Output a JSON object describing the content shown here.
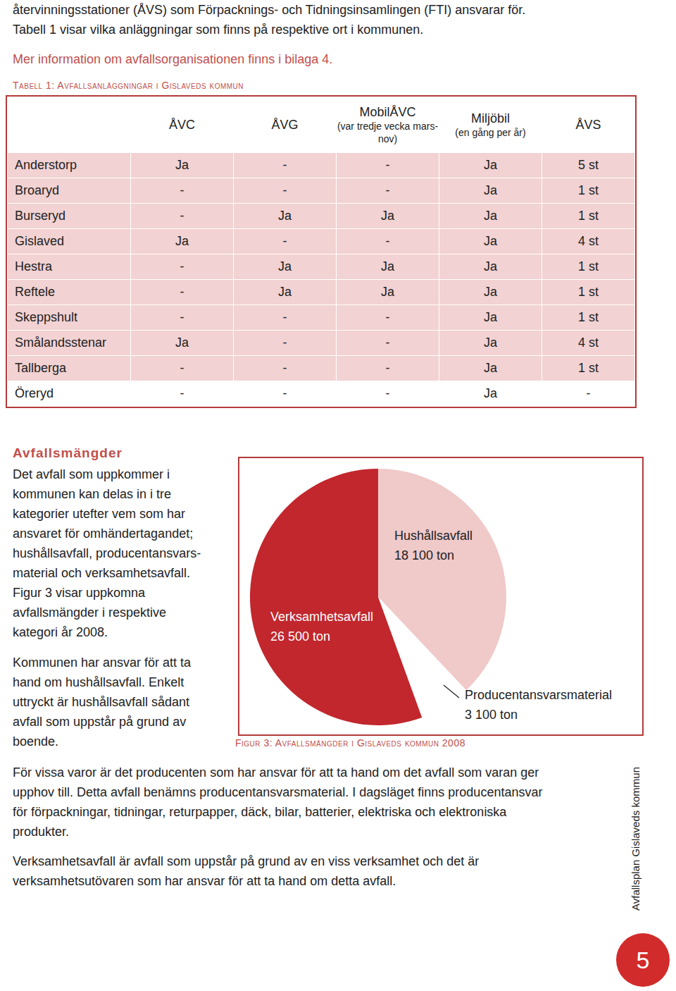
{
  "intro": {
    "lines": [
      "återvinningsstationer (ÅVS) som Förpacknings- och Tidningsinsamlingen (FTI) ansvarar för.",
      "Tabell 1 visar vilka anläggningar som finns på respektive ort i kommunen."
    ],
    "link": "Mer information om avfallsorganisationen finns i bilaga 4."
  },
  "table": {
    "title": "Tabell 1: Avfallsanläggningar i Gislaveds kommun",
    "header": [
      {
        "title": "ÅVC"
      },
      {
        "title": "ÅVG"
      },
      {
        "title": "MobilÅVC",
        "note": "(var tredje vecka mars-nov)"
      },
      {
        "title": "Miljöbil",
        "note": "(en gång per år)"
      },
      {
        "title": "ÅVS"
      }
    ],
    "rows": [
      [
        "Anderstorp",
        "Ja",
        "-",
        "-",
        "Ja",
        "5 st"
      ],
      [
        "Broaryd",
        "-",
        "-",
        "-",
        "Ja",
        "1 st"
      ],
      [
        "Burseryd",
        "-",
        "Ja",
        "Ja",
        "Ja",
        "1 st"
      ],
      [
        "Gislaved",
        "Ja",
        "-",
        "-",
        "Ja",
        "4 st"
      ],
      [
        "Hestra",
        "-",
        "Ja",
        "Ja",
        "Ja",
        "1 st"
      ],
      [
        "Reftele",
        "-",
        "Ja",
        "Ja",
        "Ja",
        "1 st"
      ],
      [
        "Skeppshult",
        "-",
        "-",
        "-",
        "Ja",
        "1 st"
      ],
      [
        "Smålandsstenar",
        "Ja",
        "-",
        "-",
        "Ja",
        "4 st"
      ],
      [
        "Tallberga",
        "-",
        "-",
        "-",
        "Ja",
        "1 st"
      ],
      [
        "Öreryd",
        "-",
        "-",
        "-",
        "Ja",
        "-"
      ]
    ]
  },
  "section": {
    "heading": "Avfallsmängder",
    "paragraphs": [
      [
        "Det avfall som uppkommer i",
        "kommunen kan delas in i tre",
        "kategorier utefter vem som har",
        "ansvaret för omhändertagandet;",
        "hushållsavfall, producentansvars-",
        "material och verksamhetsavfall.",
        "Figur 3 visar uppkomna",
        "avfallsmängder i respektive",
        "kategori år 2008."
      ],
      [
        "Kommunen har ansvar för att ta",
        "hand om hushållsavfall. Enkelt",
        "uttryckt är hushållsavfall sådant",
        "avfall som uppstår på grund av",
        "boende."
      ]
    ]
  },
  "chart_data": {
    "type": "pie",
    "title": "Figur 3: Avfallsmängder i Gislaveds kommun 2008",
    "categories": [
      "Hushållsavfall",
      "Producentansvarsmaterial",
      "Verksamhetsavfall"
    ],
    "values": [
      18100,
      3100,
      26500
    ],
    "value_labels": [
      "18 100 ton",
      "3 100 ton",
      "26 500 ton"
    ],
    "colors": [
      "#f0c9c9",
      "#ffffff",
      "#c1272d"
    ],
    "data_labels": true
  },
  "body": {
    "paragraphs": [
      [
        "För vissa varor är det producenten som har ansvar för att ta hand om det avfall som varan ger",
        "upphov till. Detta avfall benämns producentansvarsmaterial. I dagsläget finns producentansvar",
        "för förpackningar, tidningar, returpapper, däck, bilar, batterier, elektriska och elektroniska",
        "produkter."
      ],
      [
        "Verksamhetsavfall är avfall som uppstår på grund av en viss verksamhet och det är",
        "verksamhetsutövaren som har ansvar för att ta hand om detta avfall."
      ]
    ]
  },
  "side_text": "Avfallsplan Gislaveds kommun",
  "page_number": "5"
}
